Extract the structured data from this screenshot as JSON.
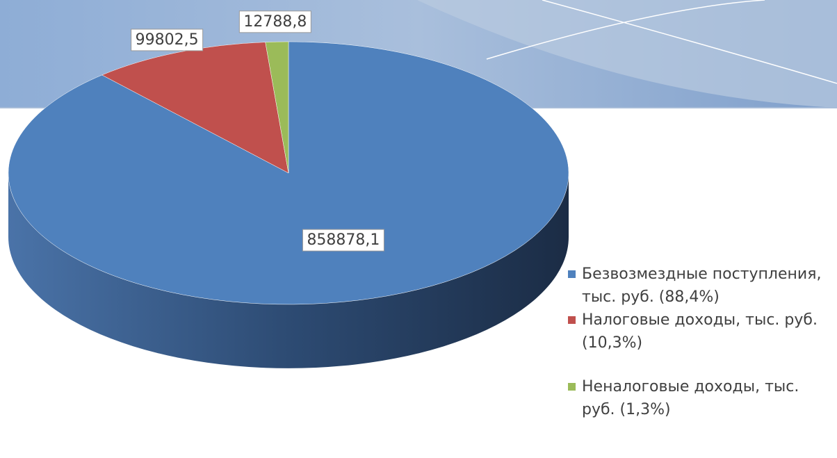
{
  "chart_data": {
    "type": "pie",
    "categories": [
      "Безвозмездные поступления, тыс. руб. (88,4%)",
      "Налоговые доходы, тыс. руб. (10,3%)",
      "Неналоговые доходы, тыс. руб. (1,3%)"
    ],
    "values": [
      858878.1,
      99802.5,
      12788.8
    ],
    "value_labels": [
      "858878,1",
      "99802,5",
      "12788,8"
    ],
    "colors": [
      "#4f81bd",
      "#c0504d",
      "#9bbb59"
    ],
    "legend": "right"
  }
}
